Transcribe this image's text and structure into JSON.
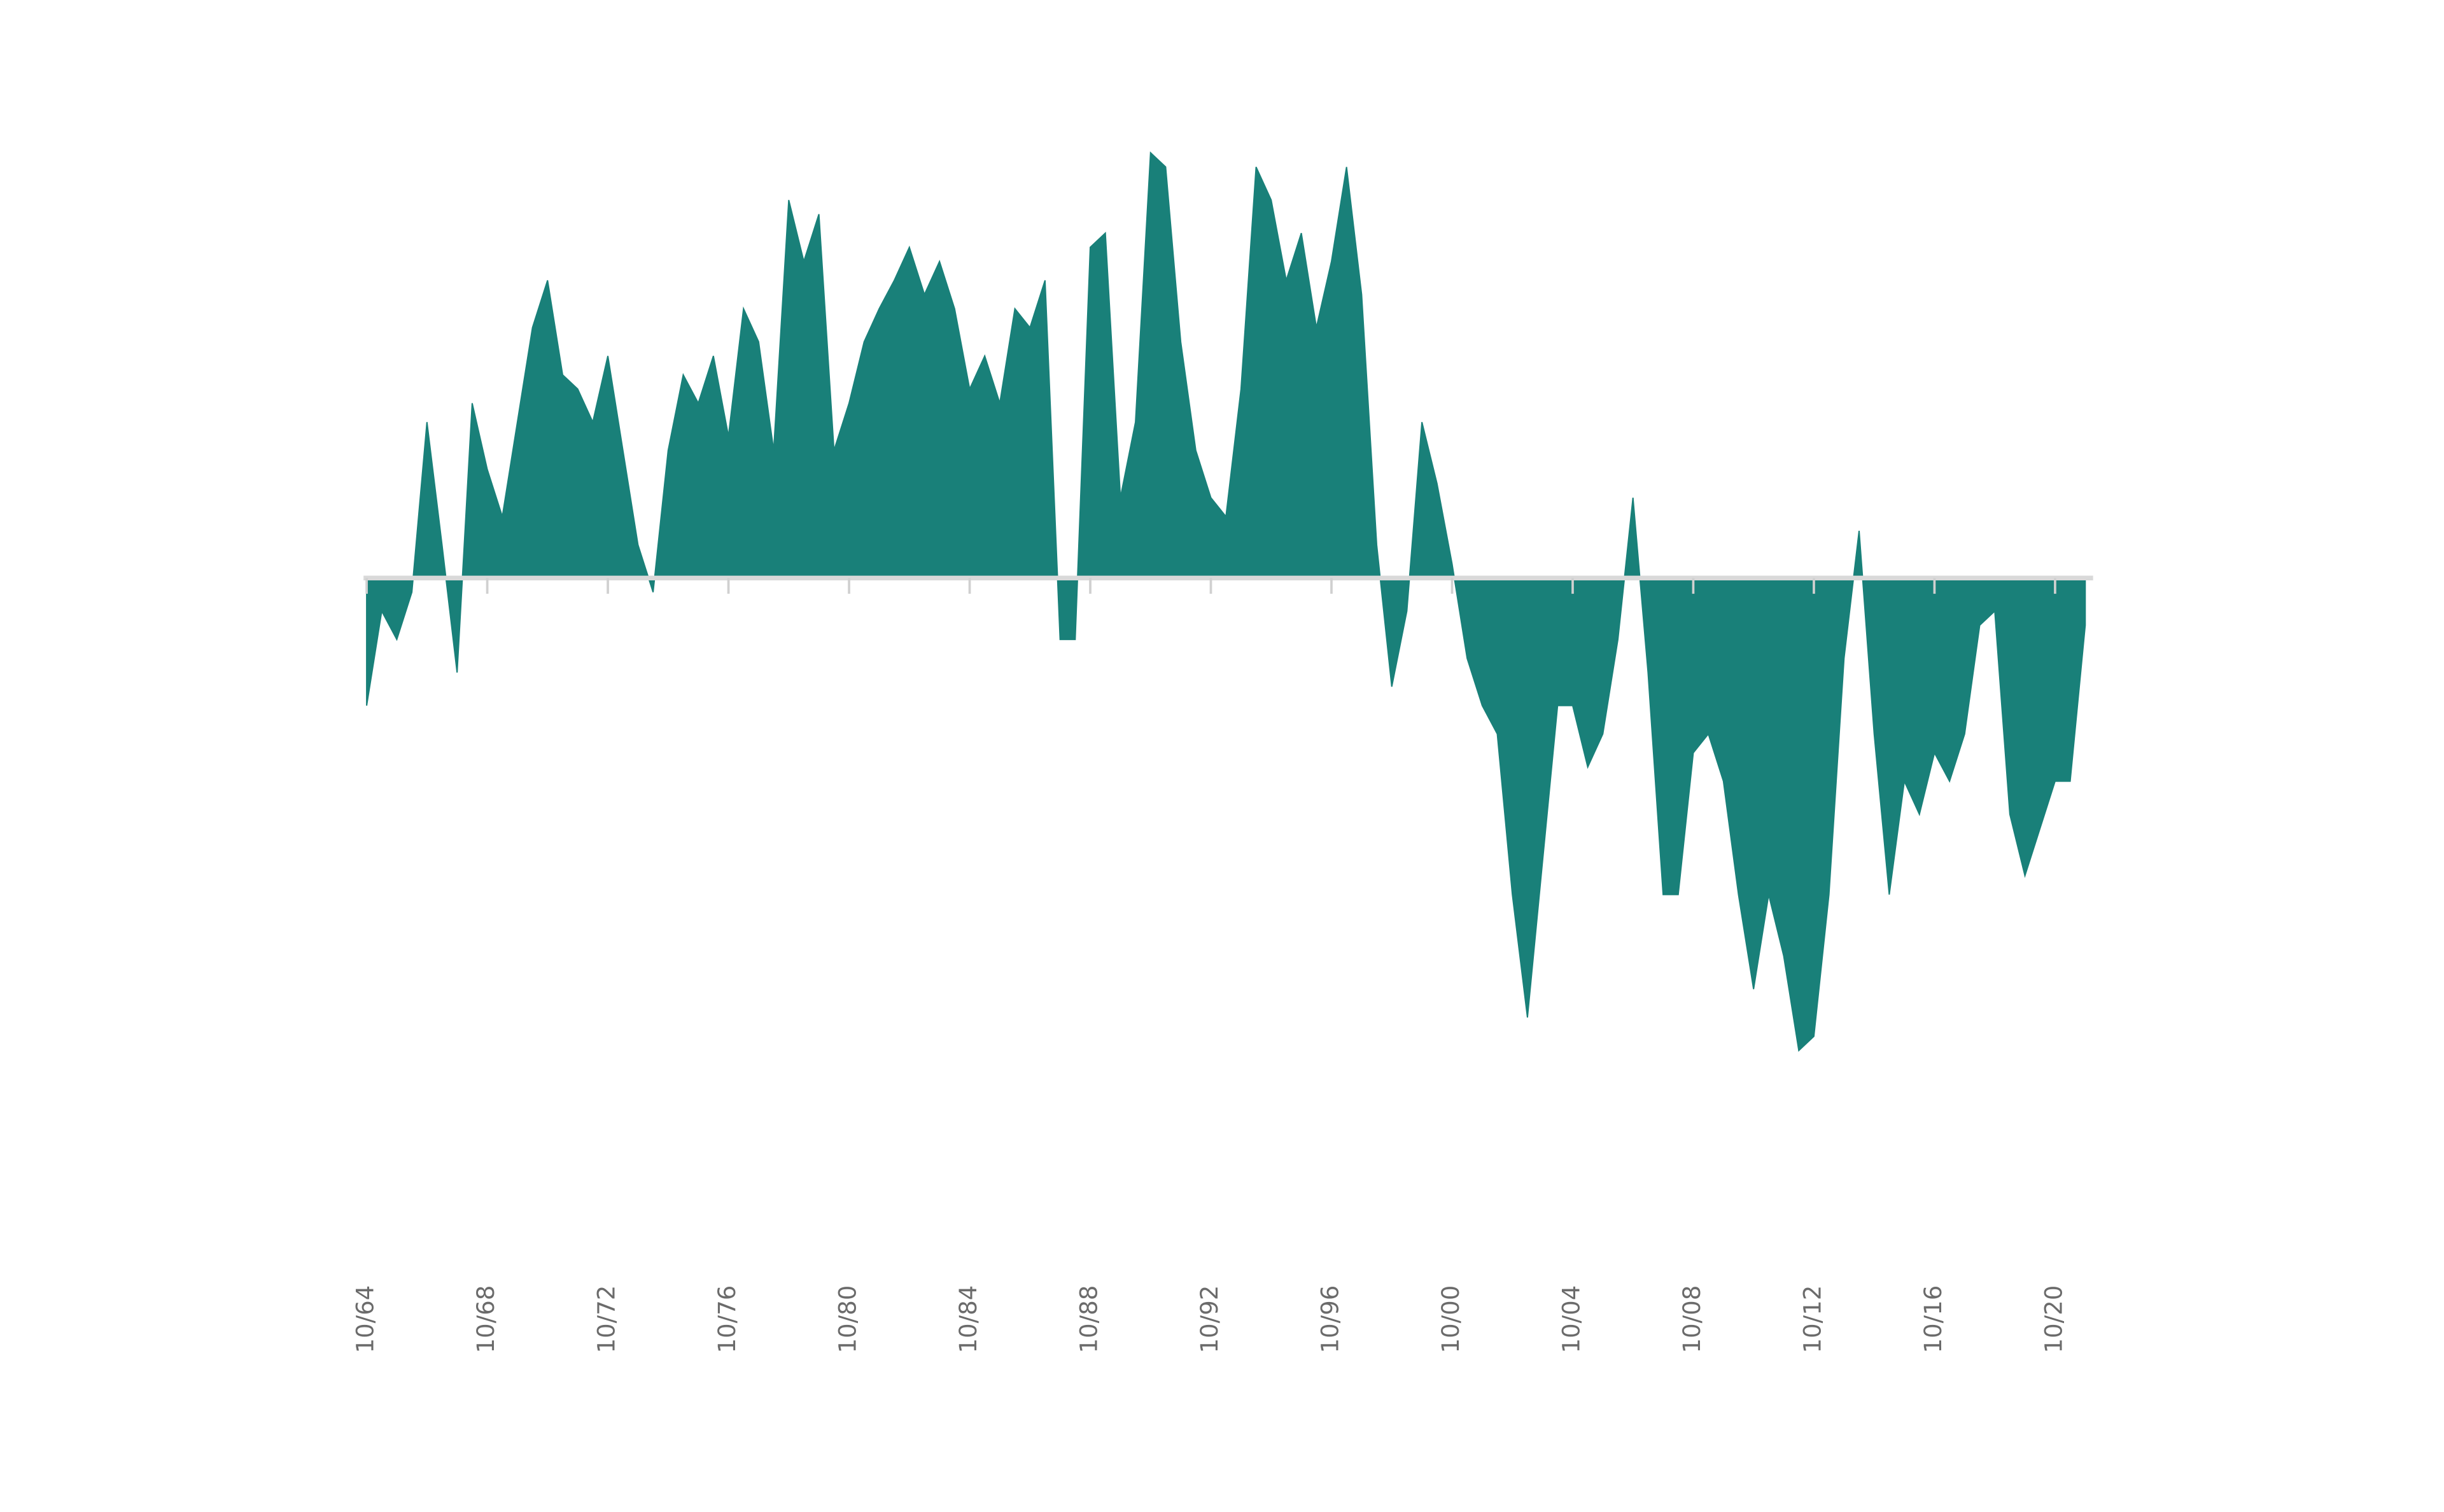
{
  "chart_data": {
    "type": "area",
    "color": "#198079",
    "categories": [
      "10/64",
      null,
      null,
      null,
      null,
      null,
      null,
      null,
      "10/68",
      null,
      null,
      null,
      null,
      null,
      null,
      null,
      "10/72",
      null,
      null,
      null,
      null,
      null,
      null,
      null,
      "10/76",
      null,
      null,
      null,
      null,
      null,
      null,
      null,
      "10/80",
      null,
      null,
      null,
      null,
      null,
      null,
      null,
      "10/84",
      null,
      null,
      null,
      null,
      null,
      null,
      null,
      "10/88",
      null,
      null,
      null,
      null,
      null,
      null,
      null,
      "10/92",
      null,
      null,
      null,
      null,
      null,
      null,
      null,
      "10/96",
      null,
      null,
      null,
      null,
      null,
      null,
      null,
      "10/00",
      null,
      null,
      null,
      null,
      null,
      null,
      null,
      "10/04",
      null,
      null,
      null,
      null,
      null,
      null,
      null,
      "10/08",
      null,
      null,
      null,
      null,
      null,
      null,
      null,
      "10/12",
      null,
      null,
      null,
      null,
      null,
      null,
      null,
      "10/16",
      null,
      null,
      null,
      null,
      null,
      null,
      null,
      "10/20",
      null,
      null
    ],
    "values": [
      -27,
      -7,
      -13,
      -3,
      33,
      7,
      -20,
      37,
      23,
      13,
      33,
      53,
      63,
      43,
      40,
      33,
      47,
      27,
      7,
      -3,
      27,
      43,
      37,
      47,
      30,
      57,
      50,
      27,
      80,
      67,
      77,
      27,
      37,
      50,
      57,
      63,
      70,
      60,
      67,
      57,
      40,
      47,
      37,
      57,
      53,
      63,
      -13,
      -13,
      70,
      73,
      17,
      33,
      90,
      87,
      50,
      27,
      17,
      13,
      40,
      87,
      80,
      63,
      73,
      53,
      67,
      87,
      60,
      7,
      -23,
      -7,
      33,
      20,
      3,
      -17,
      -27,
      -33,
      -67,
      -93,
      -60,
      -27,
      -27,
      -40,
      -33,
      -13,
      17,
      -20,
      -67,
      -67,
      -37,
      -33,
      -43,
      -67,
      -87,
      -67,
      -80,
      -100,
      -97,
      -67,
      -17,
      10,
      -33,
      -67,
      -43,
      -50,
      -37,
      -43,
      -33,
      -10,
      -7,
      -50,
      -63,
      -53,
      -43,
      -43,
      -10
    ],
    "ylim": [
      -110,
      100
    ]
  }
}
